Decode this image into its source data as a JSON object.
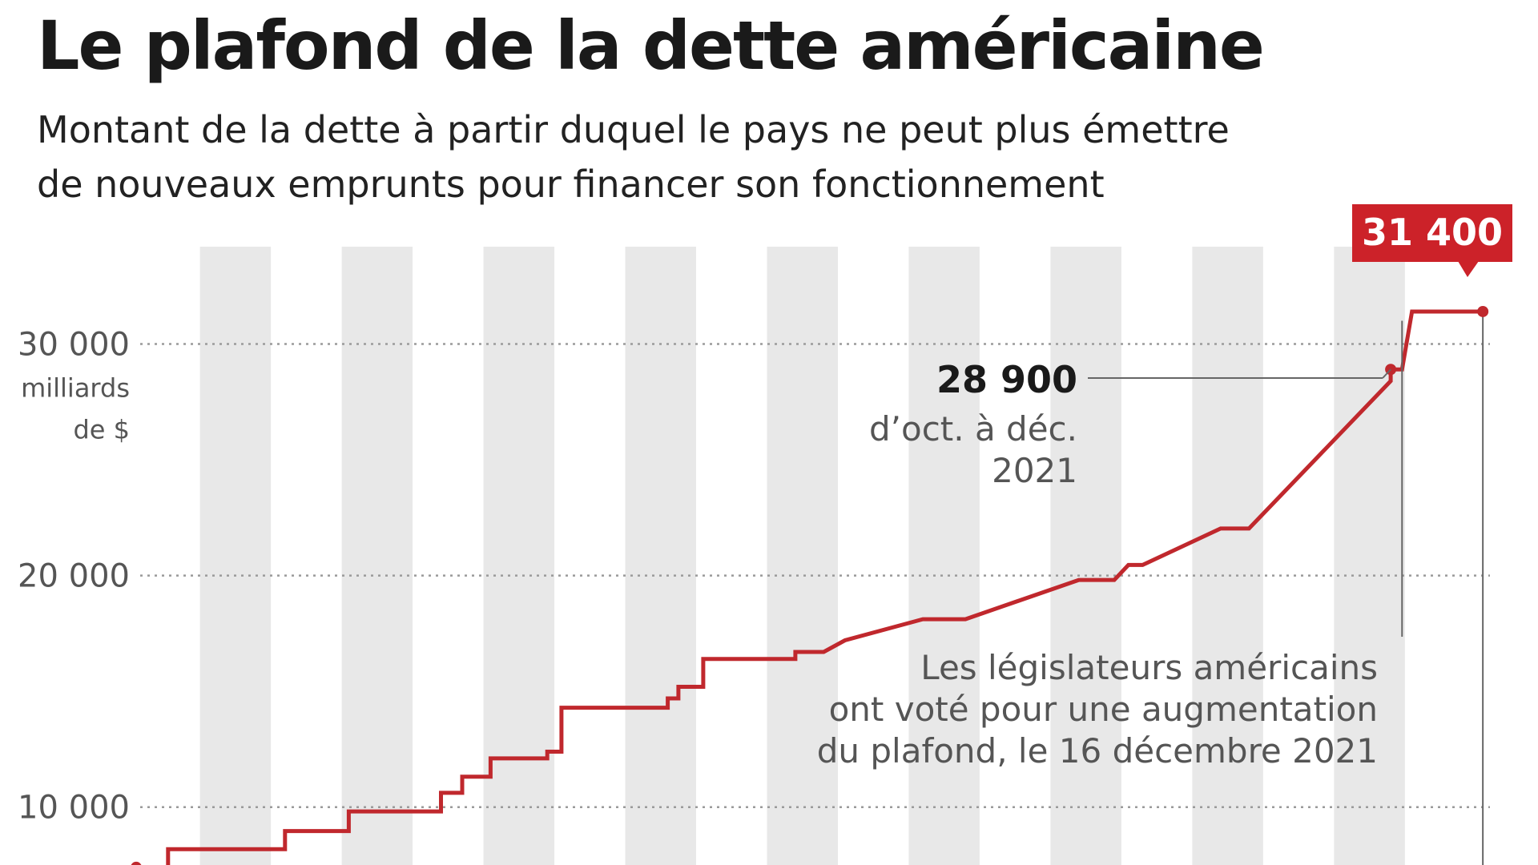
{
  "title": "Le plafond de la dette américaine",
  "subtitle": [
    "Montant de la dette à partir duquel le pays ne peut plus émettre",
    "de nouveaux emprunts pour financer son fonctionnement"
  ],
  "colors": {
    "line": "#c0282d",
    "callout": "#cc2229",
    "band": "#e8e8e8",
    "grid": "#9a9a9a",
    "text": "#1a1a1a",
    "muted": "#555555"
  },
  "chart_data": {
    "type": "line",
    "title": "Le plafond de la dette américaine",
    "ylabel": "milliards de $",
    "unit_label": [
      "milliards",
      "de $"
    ],
    "ylim": [
      7500,
      34200
    ],
    "xlim": [
      2004.1,
      2023.2
    ],
    "grid": "horizontal dotted",
    "y_ticks": [
      {
        "value": 10000,
        "label": "10 000"
      },
      {
        "value": 20000,
        "label": "20 000"
      },
      {
        "value": 30000,
        "label": "30 000"
      }
    ],
    "series": [
      {
        "values": [
          {
            "x": 2004.1,
            "y": 7400
          },
          {
            "x": 2004.55,
            "y": 7400
          },
          {
            "x": 2004.55,
            "y": 8184
          },
          {
            "x": 2006.2,
            "y": 8184
          },
          {
            "x": 2006.2,
            "y": 8965
          },
          {
            "x": 2007.1,
            "y": 8965
          },
          {
            "x": 2007.1,
            "y": 9815
          },
          {
            "x": 2008.4,
            "y": 9815
          },
          {
            "x": 2008.4,
            "y": 10615
          },
          {
            "x": 2008.7,
            "y": 10615
          },
          {
            "x": 2008.7,
            "y": 11315
          },
          {
            "x": 2009.1,
            "y": 11315
          },
          {
            "x": 2009.1,
            "y": 12104
          },
          {
            "x": 2009.9,
            "y": 12104
          },
          {
            "x": 2009.9,
            "y": 12394
          },
          {
            "x": 2010.1,
            "y": 12394
          },
          {
            "x": 2010.1,
            "y": 14294
          },
          {
            "x": 2011.6,
            "y": 14294
          },
          {
            "x": 2011.6,
            "y": 14694
          },
          {
            "x": 2011.75,
            "y": 14694
          },
          {
            "x": 2011.75,
            "y": 15194
          },
          {
            "x": 2012.1,
            "y": 15194
          },
          {
            "x": 2012.1,
            "y": 16394
          },
          {
            "x": 2013.4,
            "y": 16394
          },
          {
            "x": 2013.4,
            "y": 16699
          },
          {
            "x": 2013.8,
            "y": 16699
          },
          {
            "x": 2014.1,
            "y": 17200
          },
          {
            "x": 2015.2,
            "y": 18113
          },
          {
            "x": 2015.8,
            "y": 18113
          },
          {
            "x": 2017.4,
            "y": 19808
          },
          {
            "x": 2017.9,
            "y": 19808
          },
          {
            "x": 2018.1,
            "y": 20456
          },
          {
            "x": 2018.3,
            "y": 20456
          },
          {
            "x": 2019.4,
            "y": 22030
          },
          {
            "x": 2019.8,
            "y": 22030
          },
          {
            "x": 2021.8,
            "y": 28401
          },
          {
            "x": 2021.8,
            "y": 28900
          },
          {
            "x": 2021.96,
            "y": 28900
          },
          {
            "x": 2022.1,
            "y": 31400
          },
          {
            "x": 2023.1,
            "y": 31400
          }
        ]
      }
    ],
    "annotations": [
      {
        "value": "28 900",
        "lines": [
          "d’oct. à déc.",
          "2021"
        ],
        "x": 2021.8,
        "y": 28900
      },
      {
        "lines": [
          "Les législateurs américains",
          "ont voté pour une augmentation",
          "du plafond, le 16 décembre 2021"
        ],
        "x": 2021.96
      },
      {
        "value": "31 400",
        "x": 2023.1,
        "y": 31400,
        "highlight": true
      }
    ]
  }
}
